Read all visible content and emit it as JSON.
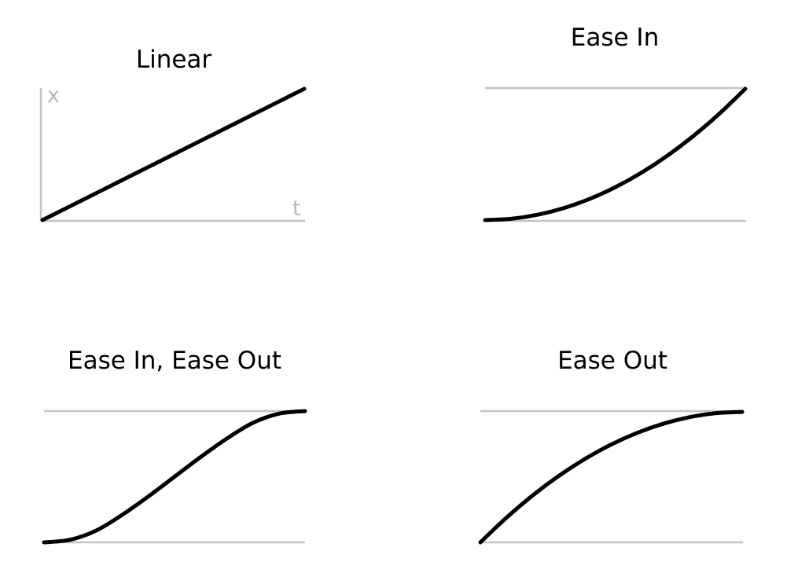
{
  "figure": {
    "colors": {
      "curve": "#000000",
      "axis": "#c4c4c4",
      "axis_label": "#b9b9b9",
      "background": "#ffffff"
    }
  },
  "chart_data": [
    {
      "type": "line",
      "title": "Linear",
      "xlabel": "t",
      "ylabel": "x",
      "axes": "left-and-bottom",
      "xlim": [
        0,
        1
      ],
      "ylim": [
        0,
        1
      ],
      "series": [
        {
          "x": [
            0,
            0.1,
            0.2,
            0.3,
            0.4,
            0.5,
            0.6,
            0.7,
            0.8,
            0.9,
            1.0
          ],
          "y": [
            0,
            0.1,
            0.2,
            0.3,
            0.4,
            0.5,
            0.6,
            0.7,
            0.8,
            0.9,
            1.0
          ]
        }
      ]
    },
    {
      "type": "line",
      "title": "Ease In",
      "xlabel": "",
      "ylabel": "",
      "axes": "top-and-bottom-guides",
      "xlim": [
        0,
        1
      ],
      "ylim": [
        0,
        1
      ],
      "series": [
        {
          "x": [
            0,
            0.1,
            0.2,
            0.3,
            0.4,
            0.5,
            0.6,
            0.7,
            0.8,
            0.9,
            1.0
          ],
          "y": [
            0,
            0.01,
            0.04,
            0.09,
            0.16,
            0.25,
            0.36,
            0.49,
            0.64,
            0.81,
            1.0
          ]
        }
      ]
    },
    {
      "type": "line",
      "title": "Ease In, Ease Out",
      "xlabel": "",
      "ylabel": "",
      "axes": "top-and-bottom-guides",
      "xlim": [
        0,
        1
      ],
      "ylim": [
        0,
        1
      ],
      "series": [
        {
          "x": [
            0,
            0.1,
            0.2,
            0.3,
            0.4,
            0.5,
            0.6,
            0.7,
            0.8,
            0.9,
            1.0
          ],
          "y": [
            0,
            0.02,
            0.09,
            0.21,
            0.35,
            0.5,
            0.65,
            0.79,
            0.91,
            0.98,
            1.0
          ]
        }
      ]
    },
    {
      "type": "line",
      "title": "Ease Out",
      "xlabel": "",
      "ylabel": "",
      "axes": "top-and-bottom-guides",
      "xlim": [
        0,
        1
      ],
      "ylim": [
        0,
        1
      ],
      "series": [
        {
          "x": [
            0,
            0.1,
            0.2,
            0.3,
            0.4,
            0.5,
            0.6,
            0.7,
            0.8,
            0.9,
            1.0
          ],
          "y": [
            0,
            0.19,
            0.36,
            0.51,
            0.64,
            0.75,
            0.84,
            0.91,
            0.96,
            0.99,
            1.0
          ]
        }
      ]
    }
  ]
}
